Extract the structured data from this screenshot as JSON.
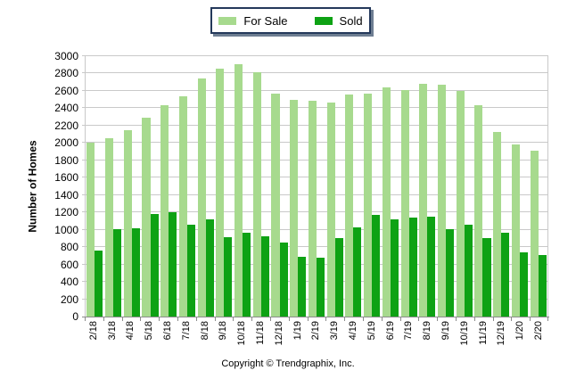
{
  "legend": {
    "border_color": "#24395B",
    "shadow_color": "#6E7E92"
  },
  "chart_data": {
    "type": "bar",
    "title": "",
    "xlabel": "",
    "ylabel": "Number of Homes",
    "ylim": [
      0,
      3000
    ],
    "ytick_step": 200,
    "grid": "horizontal",
    "legend_position": "top-center",
    "categories": [
      "2/18",
      "3/18",
      "4/18",
      "5/18",
      "6/18",
      "7/18",
      "8/18",
      "9/18",
      "10/18",
      "11/18",
      "12/18",
      "1/19",
      "2/19",
      "3/19",
      "4/19",
      "5/19",
      "6/19",
      "7/19",
      "8/19",
      "9/19",
      "10/19",
      "11/19",
      "12/19",
      "1/20",
      "2/20"
    ],
    "series": [
      {
        "name": "For Sale",
        "color": "#A7DA8E",
        "values": [
          2000,
          2055,
          2150,
          2290,
          2435,
          2535,
          2740,
          2860,
          2910,
          2820,
          2570,
          2500,
          2490,
          2465,
          2560,
          2570,
          2645,
          2610,
          2685,
          2670,
          2600,
          2435,
          2130,
          1980,
          1910
        ]
      },
      {
        "name": "Sold",
        "color": "#0EA214",
        "values": [
          760,
          1010,
          1020,
          1180,
          1205,
          1060,
          1125,
          915,
          965,
          925,
          855,
          690,
          675,
          905,
          1030,
          1175,
          1120,
          1145,
          1155,
          1010,
          1055,
          900,
          965,
          740,
          710
        ]
      }
    ]
  },
  "footer": {
    "copyright": "Copyright © Trendgraphix, Inc."
  }
}
